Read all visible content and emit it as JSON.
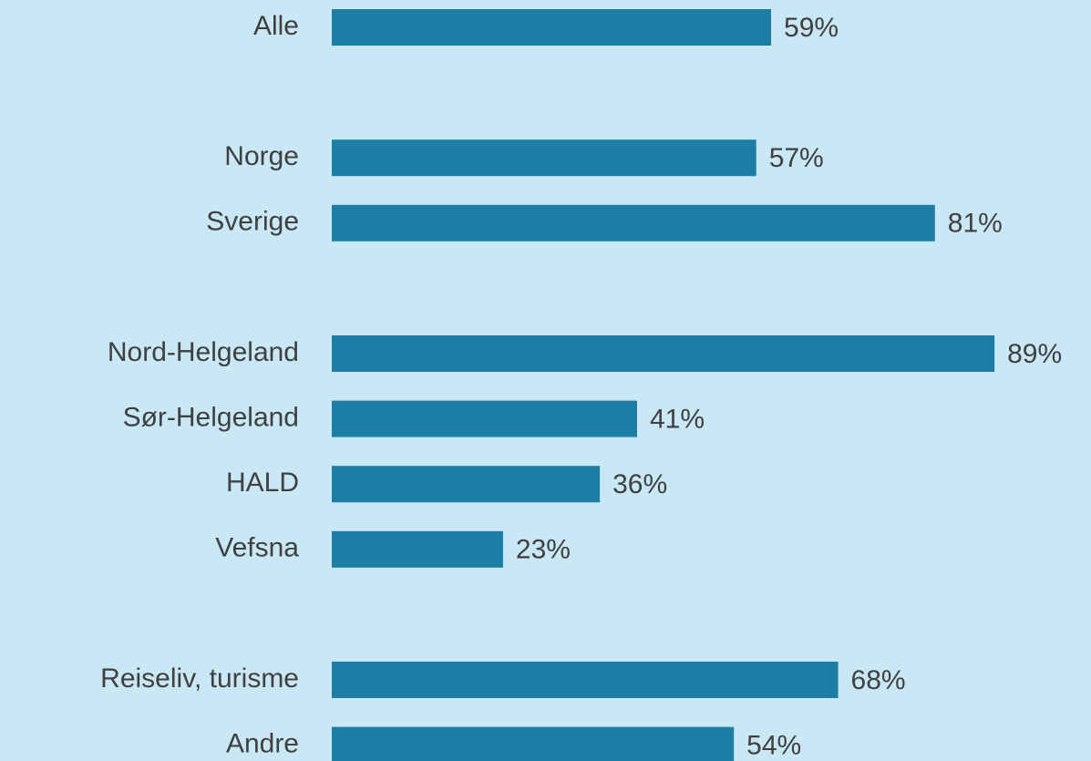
{
  "chart_data": {
    "type": "hbar",
    "categories": [
      "Alle",
      null,
      "Norge",
      "Sverige",
      null,
      "Nord-Helgeland",
      "Sør-Helgeland",
      "HALD",
      "Vefsna",
      null,
      "Reiseliv, turisme",
      "Andre"
    ],
    "values": [
      59,
      null,
      57,
      81,
      null,
      89,
      41,
      36,
      23,
      null,
      68,
      54
    ],
    "value_labels": [
      "59%",
      null,
      "57%",
      "81%",
      null,
      "89%",
      "41%",
      "36%",
      "23%",
      null,
      "68%",
      "54%"
    ],
    "color": "#1d7ea5",
    "xlim": [
      0,
      100
    ]
  }
}
